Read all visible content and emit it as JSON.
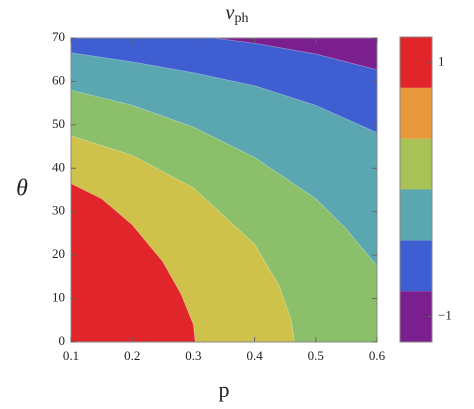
{
  "chart_data": {
    "type": "contour",
    "title": "v",
    "title_subscript": "ph",
    "x_label": "p",
    "y_label": "θ",
    "xlim": [
      0.1,
      0.6
    ],
    "ylim": [
      0,
      70
    ],
    "xticks": [
      0.1,
      0.2,
      0.3,
      0.4,
      0.5,
      0.6
    ],
    "yticks": [
      0,
      10,
      20,
      30,
      40,
      50,
      60,
      70
    ],
    "regions": [
      {
        "level": -1,
        "color": "#7b1e8e"
      },
      {
        "level": -0.6,
        "color": "#3f5ed2"
      },
      {
        "level": -0.2,
        "color": "#5aa6b1"
      },
      {
        "level": 0.2,
        "color": "#8bbf69"
      },
      {
        "level": 0.6,
        "color": "#cfc24a"
      },
      {
        "level": 1,
        "color": "#e0262a"
      }
    ],
    "boundaries": [
      {
        "x": [
          0.332,
          0.4,
          0.5,
          0.6
        ],
        "y": [
          70,
          68.8,
          66.3,
          62.7
        ]
      },
      {
        "x": [
          0.1,
          0.2,
          0.3,
          0.4,
          0.5,
          0.6
        ],
        "y": [
          66.6,
          64.5,
          62,
          59,
          54.5,
          48.2
        ]
      },
      {
        "x": [
          0.1,
          0.2,
          0.3,
          0.4,
          0.5,
          0.55,
          0.6
        ],
        "y": [
          58,
          54.5,
          49.5,
          42.5,
          33,
          26,
          17.5
        ]
      },
      {
        "x": [
          0.1,
          0.2,
          0.3,
          0.4,
          0.44,
          0.46,
          0.465
        ],
        "y": [
          47.5,
          43,
          35.5,
          22.5,
          13,
          5,
          0
        ]
      },
      {
        "x": [
          0.1,
          0.15,
          0.2,
          0.25,
          0.28,
          0.3,
          0.303
        ],
        "y": [
          36.5,
          33,
          27,
          18.5,
          11,
          4,
          0
        ]
      }
    ],
    "colorbar": {
      "lim": [
        -1.2,
        1.2
      ],
      "colors": [
        "#7b1e8e",
        "#3f5ed2",
        "#5aa6b1",
        "#a8c255",
        "#e8993c",
        "#e0262a"
      ],
      "ticks": [
        1,
        {
          "value": -1,
          "label": "−1"
        }
      ]
    }
  }
}
